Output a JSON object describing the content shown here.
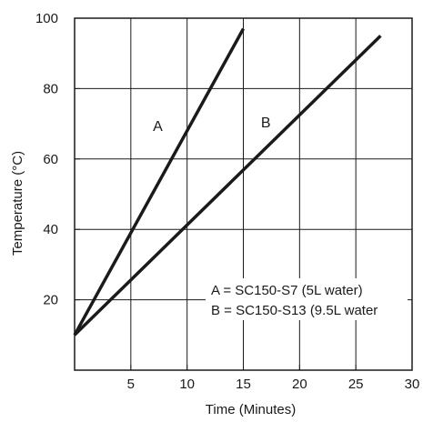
{
  "chart_data": {
    "type": "line",
    "xlabel": "Time (Minutes)",
    "ylabel": "Temperature (°C)",
    "xlim": [
      0,
      30
    ],
    "ylim": [
      0,
      100
    ],
    "xticks": [
      5,
      10,
      15,
      20,
      25,
      30
    ],
    "yticks": [
      20,
      40,
      60,
      80,
      100
    ],
    "grid": true,
    "series": [
      {
        "name": "A",
        "x": [
          0,
          15
        ],
        "y": [
          10,
          97
        ],
        "color": "#1a1a1a"
      },
      {
        "name": "B",
        "x": [
          0,
          27.2
        ],
        "y": [
          10,
          95
        ],
        "color": "#1a1a1a"
      }
    ],
    "series_labels": [
      {
        "text": "A",
        "x": 7.4,
        "y": 68
      },
      {
        "text": "B",
        "x": 17,
        "y": 69
      }
    ],
    "legend": {
      "placement": "bottom-right",
      "lines": [
        "A = SC150-S7 (5L water)",
        "B = SC150-S13 (9.5L water"
      ]
    }
  }
}
